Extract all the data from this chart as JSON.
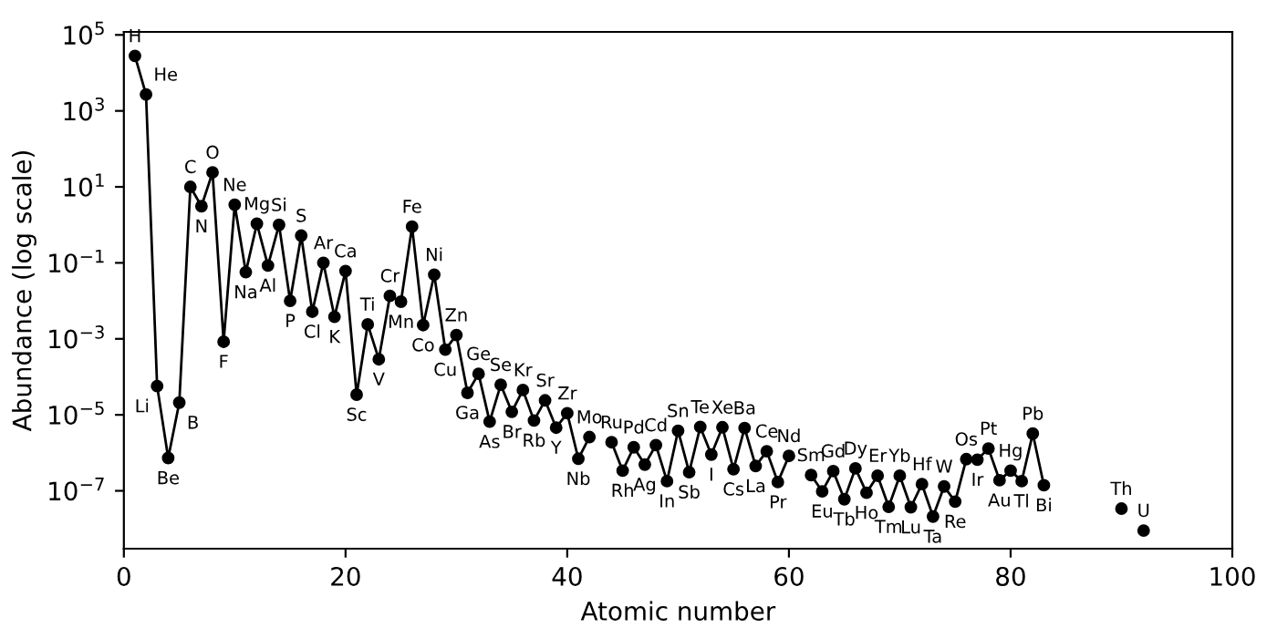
{
  "chart_data": {
    "type": "line",
    "xlabel": "Atomic number",
    "ylabel": "Abundance (log scale)",
    "log": "y",
    "marker": "circle",
    "line_style": "solid",
    "grid": false,
    "legend": false,
    "xlim": [
      0,
      100
    ],
    "xticks": [
      0,
      20,
      40,
      60,
      80,
      100
    ],
    "ylim": [
      3e-09,
      120000.0
    ],
    "yticks": [
      {
        "value": 1e-07,
        "label": "10$^{−7}$"
      },
      {
        "value": 1e-05,
        "label": "10$^{−5}$"
      },
      {
        "value": 0.001,
        "label": "10$^{−3}$"
      },
      {
        "value": 0.1,
        "label": "10$^{−1}$"
      },
      {
        "value": 10,
        "label": "10$^{1}$"
      },
      {
        "value": 1000,
        "label": "10$^{3}$"
      },
      {
        "value": 100000,
        "label": "10$^{5}$"
      }
    ],
    "series": [
      {
        "color": "#000000",
        "x": [
          1,
          2,
          3,
          4,
          5,
          6,
          7,
          8,
          9,
          10,
          11,
          12,
          13,
          14,
          15,
          16,
          17,
          18,
          19,
          20,
          21,
          22,
          23,
          24,
          25,
          26,
          27,
          28,
          29,
          30,
          31,
          32,
          33,
          34,
          35,
          36,
          37,
          38,
          39,
          40,
          41,
          42,
          43,
          44,
          45,
          46,
          47,
          48,
          49,
          50,
          51,
          52,
          53,
          54,
          55,
          56,
          57,
          58,
          59,
          60,
          61,
          62,
          63,
          64,
          65,
          66,
          67,
          68,
          69,
          70,
          71,
          72,
          73,
          74,
          75,
          76,
          77,
          78,
          79,
          80,
          81,
          82,
          83,
          84,
          90,
          91,
          92
        ],
        "values": [
          28000.0,
          2700.0,
          5.7e-05,
          7.3e-07,
          2.1e-05,
          10,
          3.1,
          24,
          0.00084,
          3.4,
          0.057,
          1.07,
          0.085,
          1,
          0.01,
          0.52,
          0.0052,
          0.1,
          0.0038,
          0.061,
          3.4e-05,
          0.0024,
          0.00029,
          0.0135,
          0.0095,
          0.9,
          0.0023,
          0.049,
          0.00052,
          0.00126,
          3.8e-05,
          0.00012,
          6.6e-06,
          6.2e-05,
          1.2e-05,
          4.5e-05,
          7.1e-06,
          2.4e-05,
          4.6e-06,
          1.1e-05,
          7e-07,
          2.6e-06,
          null,
          1.9e-06,
          3.4e-07,
          1.4e-06,
          4.9e-07,
          1.6e-06,
          1.8e-07,
          3.8e-06,
          3.1e-07,
          4.8e-06,
          9e-07,
          4.7e-06,
          3.7e-07,
          4.5e-06,
          4.5e-07,
          1.1e-06,
          1.7e-07,
          8.3e-07,
          null,
          2.6e-07,
          9.7e-08,
          3.3e-07,
          6e-08,
          3.9e-07,
          8.9e-08,
          2.5e-07,
          3.8e-08,
          2.5e-07,
          3.7e-08,
          1.5e-07,
          2.1e-08,
          1.3e-07,
          5.2e-08,
          6.8e-07,
          6.6e-07,
          1.3e-06,
          1.9e-07,
          3.4e-07,
          1.8e-07,
          3.2e-06,
          1.4e-07,
          null,
          3.4e-08,
          null,
          9e-09
        ]
      }
    ],
    "annotations": [
      {
        "text": "H",
        "x": 1,
        "y": 28000.0
      },
      {
        "text": "He",
        "x": 2,
        "y": 2700.0
      },
      {
        "text": "Li",
        "x": 3,
        "y": 5.7e-05
      },
      {
        "text": "Be",
        "x": 4,
        "y": 7.3e-07
      },
      {
        "text": "B",
        "x": 5,
        "y": 2.1e-05
      },
      {
        "text": "C",
        "x": 6,
        "y": 10
      },
      {
        "text": "N",
        "x": 7,
        "y": 3.1
      },
      {
        "text": "O",
        "x": 8,
        "y": 24
      },
      {
        "text": "F",
        "x": 9,
        "y": 0.00084
      },
      {
        "text": "Ne",
        "x": 10,
        "y": 3.4
      },
      {
        "text": "Na",
        "x": 11,
        "y": 0.057
      },
      {
        "text": "Mg",
        "x": 12,
        "y": 1.07
      },
      {
        "text": "Al",
        "x": 13,
        "y": 0.085
      },
      {
        "text": "Si",
        "x": 14,
        "y": 1
      },
      {
        "text": "P",
        "x": 15,
        "y": 0.01
      },
      {
        "text": "S",
        "x": 16,
        "y": 0.52
      },
      {
        "text": "Cl",
        "x": 17,
        "y": 0.0052
      },
      {
        "text": "Ar",
        "x": 18,
        "y": 0.1
      },
      {
        "text": "K",
        "x": 19,
        "y": 0.0038
      },
      {
        "text": "Ca",
        "x": 20,
        "y": 0.061
      },
      {
        "text": "Sc",
        "x": 21,
        "y": 3.4e-05
      },
      {
        "text": "Ti",
        "x": 22,
        "y": 0.0024
      },
      {
        "text": "V",
        "x": 23,
        "y": 0.00029
      },
      {
        "text": "Cr",
        "x": 24,
        "y": 0.0135
      },
      {
        "text": "Mn",
        "x": 25,
        "y": 0.0095
      },
      {
        "text": "Fe",
        "x": 26,
        "y": 0.9
      },
      {
        "text": "Co",
        "x": 27,
        "y": 0.0023
      },
      {
        "text": "Ni",
        "x": 28,
        "y": 0.049
      },
      {
        "text": "Cu",
        "x": 29,
        "y": 0.00052
      },
      {
        "text": "Zn",
        "x": 30,
        "y": 0.00126
      },
      {
        "text": "Ga",
        "x": 31,
        "y": 3.8e-05
      },
      {
        "text": "Ge",
        "x": 32,
        "y": 0.00012
      },
      {
        "text": "As",
        "x": 33,
        "y": 6.6e-06
      },
      {
        "text": "Se",
        "x": 34,
        "y": 6.2e-05
      },
      {
        "text": "Br",
        "x": 35,
        "y": 1.2e-05
      },
      {
        "text": "Kr",
        "x": 36,
        "y": 4.5e-05
      },
      {
        "text": "Rb",
        "x": 37,
        "y": 7.1e-06
      },
      {
        "text": "Sr",
        "x": 38,
        "y": 2.4e-05
      },
      {
        "text": "Y",
        "x": 39,
        "y": 4.6e-06
      },
      {
        "text": "Zr",
        "x": 40,
        "y": 1.1e-05
      },
      {
        "text": "Nb",
        "x": 41,
        "y": 7e-07
      },
      {
        "text": "Mo",
        "x": 42,
        "y": 2.6e-06
      },
      {
        "text": "Ru",
        "x": 44,
        "y": 1.9e-06
      },
      {
        "text": "Rh",
        "x": 45,
        "y": 3.4e-07
      },
      {
        "text": "Pd",
        "x": 46,
        "y": 1.4e-06
      },
      {
        "text": "Ag",
        "x": 47,
        "y": 4.9e-07
      },
      {
        "text": "Cd",
        "x": 48,
        "y": 1.6e-06
      },
      {
        "text": "In",
        "x": 49,
        "y": 1.8e-07
      },
      {
        "text": "Sn",
        "x": 50,
        "y": 3.8e-06
      },
      {
        "text": "Sb",
        "x": 51,
        "y": 3.1e-07
      },
      {
        "text": "Te",
        "x": 52,
        "y": 4.8e-06
      },
      {
        "text": "I",
        "x": 53,
        "y": 9e-07
      },
      {
        "text": "Xe",
        "x": 54,
        "y": 4.7e-06
      },
      {
        "text": "Cs",
        "x": 55,
        "y": 3.7e-07
      },
      {
        "text": "Ba",
        "x": 56,
        "y": 4.5e-06
      },
      {
        "text": "La",
        "x": 57,
        "y": 4.5e-07
      },
      {
        "text": "Ce",
        "x": 58,
        "y": 1.1e-06
      },
      {
        "text": "Pr",
        "x": 59,
        "y": 1.7e-07
      },
      {
        "text": "Nd",
        "x": 60,
        "y": 8.3e-07
      },
      {
        "text": "Sm",
        "x": 62,
        "y": 2.6e-07
      },
      {
        "text": "Eu",
        "x": 63,
        "y": 9.7e-08
      },
      {
        "text": "Gd",
        "x": 64,
        "y": 3.3e-07
      },
      {
        "text": "Tb",
        "x": 65,
        "y": 6e-08
      },
      {
        "text": "Dy",
        "x": 66,
        "y": 3.9e-07
      },
      {
        "text": "Ho",
        "x": 67,
        "y": 8.9e-08
      },
      {
        "text": "Er",
        "x": 68,
        "y": 2.5e-07
      },
      {
        "text": "Tm",
        "x": 69,
        "y": 3.8e-08
      },
      {
        "text": "Yb",
        "x": 70,
        "y": 2.5e-07
      },
      {
        "text": "Lu",
        "x": 71,
        "y": 3.7e-08
      },
      {
        "text": "Hf",
        "x": 72,
        "y": 1.5e-07
      },
      {
        "text": "Ta",
        "x": 73,
        "y": 2.1e-08
      },
      {
        "text": "W",
        "x": 74,
        "y": 1.3e-07
      },
      {
        "text": "Re",
        "x": 75,
        "y": 5.2e-08
      },
      {
        "text": "Os",
        "x": 76,
        "y": 6.8e-07
      },
      {
        "text": "Ir",
        "x": 77,
        "y": 6.6e-07
      },
      {
        "text": "Pt",
        "x": 78,
        "y": 1.3e-06
      },
      {
        "text": "Au",
        "x": 79,
        "y": 1.9e-07
      },
      {
        "text": "Hg",
        "x": 80,
        "y": 3.4e-07
      },
      {
        "text": "Tl",
        "x": 81,
        "y": 1.8e-07
      },
      {
        "text": "Pb",
        "x": 82,
        "y": 3.2e-06
      },
      {
        "text": "Bi",
        "x": 83,
        "y": 1.4e-07
      },
      {
        "text": "Th",
        "x": 90,
        "y": 3.4e-08
      },
      {
        "text": "U",
        "x": 92,
        "y": 9e-09
      }
    ]
  }
}
